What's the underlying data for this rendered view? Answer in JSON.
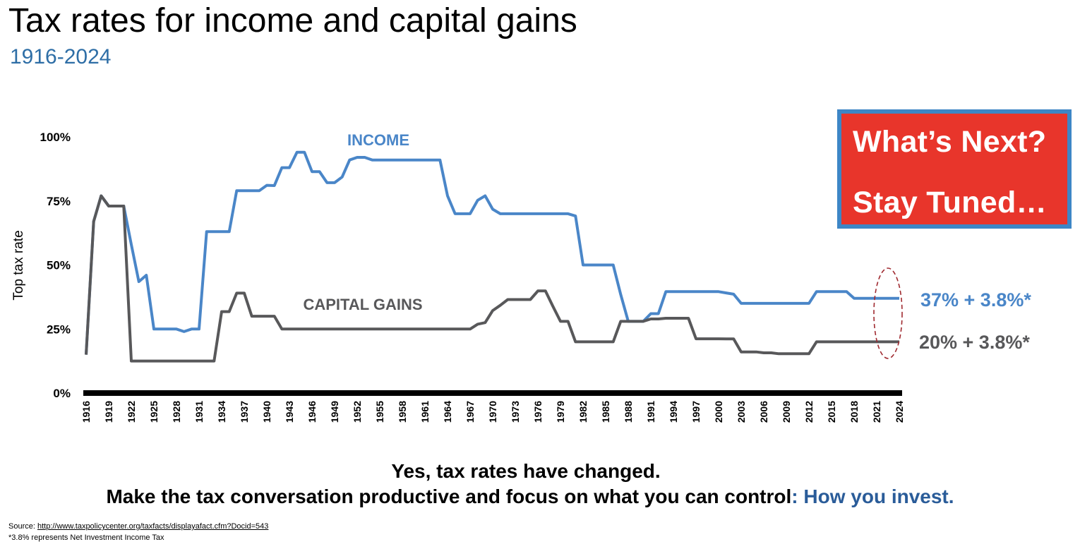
{
  "header": {
    "title": "Tax rates for income and capital gains",
    "subtitle": "1916-2024"
  },
  "callout": {
    "line1": "What’s Next?",
    "line2": "Stay Tuned…",
    "fill_color": "#e8352b",
    "border_color": "#3d86c6"
  },
  "message": {
    "line1": "Yes, tax rates have changed.",
    "line2_main": "Make the tax conversation productive and focus on what you can control",
    "line2_colon": ":",
    "line2_highlight": " How you invest."
  },
  "footnotes": {
    "source_prefix": "Source: ",
    "source_link": "http://www.taxpolicycenter.org/taxfacts/displayafact.cfm?Docid=543",
    "note": "*3.8% represents Net Investment Income Tax"
  },
  "chart_data": {
    "type": "line",
    "title": "",
    "xlabel": "",
    "ylabel": "Top tax rate",
    "xlim": [
      1916,
      2024
    ],
    "ylim": [
      0,
      100
    ],
    "y_ticks": [
      0,
      25,
      50,
      75,
      100
    ],
    "y_tick_labels": [
      "0%",
      "25%",
      "50%",
      "75%",
      "100%"
    ],
    "x_tick_labels": [
      "1916",
      "1919",
      "1922",
      "1925",
      "1928",
      "1931",
      "1934",
      "1937",
      "1940",
      "1943",
      "1946",
      "1949",
      "1952",
      "1955",
      "1958",
      "1961",
      "1964",
      "1967",
      "1970",
      "1973",
      "1976",
      "1979",
      "1982",
      "1985",
      "1988",
      "1991",
      "1994",
      "1997",
      "2000",
      "2003",
      "2006",
      "2009",
      "2012",
      "2015",
      "2018",
      "2021",
      "2024"
    ],
    "grid": false,
    "legend": "none",
    "series": [
      {
        "name": "INCOME",
        "color": "#4a86c8",
        "end_label": "37% + 3.8%*",
        "points": [
          [
            1916,
            15
          ],
          [
            1917,
            67
          ],
          [
            1918,
            77
          ],
          [
            1919,
            73
          ],
          [
            1920,
            73
          ],
          [
            1921,
            73
          ],
          [
            1922,
            58
          ],
          [
            1923,
            43.5
          ],
          [
            1924,
            46
          ],
          [
            1925,
            25
          ],
          [
            1926,
            25
          ],
          [
            1927,
            25
          ],
          [
            1928,
            25
          ],
          [
            1929,
            24
          ],
          [
            1930,
            25
          ],
          [
            1931,
            25
          ],
          [
            1932,
            63
          ],
          [
            1933,
            63
          ],
          [
            1934,
            63
          ],
          [
            1935,
            63
          ],
          [
            1936,
            79
          ],
          [
            1937,
            79
          ],
          [
            1938,
            79
          ],
          [
            1939,
            79
          ],
          [
            1940,
            81.1
          ],
          [
            1941,
            81
          ],
          [
            1942,
            88
          ],
          [
            1943,
            88
          ],
          [
            1944,
            94
          ],
          [
            1945,
            94
          ],
          [
            1946,
            86.45
          ],
          [
            1947,
            86.45
          ],
          [
            1948,
            82.13
          ],
          [
            1949,
            82.13
          ],
          [
            1950,
            84.36
          ],
          [
            1951,
            91
          ],
          [
            1952,
            92
          ],
          [
            1953,
            92
          ],
          [
            1954,
            91
          ],
          [
            1955,
            91
          ],
          [
            1956,
            91
          ],
          [
            1957,
            91
          ],
          [
            1958,
            91
          ],
          [
            1959,
            91
          ],
          [
            1960,
            91
          ],
          [
            1961,
            91
          ],
          [
            1962,
            91
          ],
          [
            1963,
            91
          ],
          [
            1964,
            77
          ],
          [
            1965,
            70
          ],
          [
            1966,
            70
          ],
          [
            1967,
            70
          ],
          [
            1968,
            75.25
          ],
          [
            1969,
            77
          ],
          [
            1970,
            71.75
          ],
          [
            1971,
            70
          ],
          [
            1972,
            70
          ],
          [
            1973,
            70
          ],
          [
            1974,
            70
          ],
          [
            1975,
            70
          ],
          [
            1976,
            70
          ],
          [
            1977,
            70
          ],
          [
            1978,
            70
          ],
          [
            1979,
            70
          ],
          [
            1980,
            70
          ],
          [
            1981,
            69.13
          ],
          [
            1982,
            50
          ],
          [
            1983,
            50
          ],
          [
            1984,
            50
          ],
          [
            1985,
            50
          ],
          [
            1986,
            50
          ],
          [
            1987,
            38.5
          ],
          [
            1988,
            28
          ],
          [
            1989,
            28
          ],
          [
            1990,
            28
          ],
          [
            1991,
            31
          ],
          [
            1992,
            31
          ],
          [
            1993,
            39.6
          ],
          [
            1994,
            39.6
          ],
          [
            1995,
            39.6
          ],
          [
            1996,
            39.6
          ],
          [
            1997,
            39.6
          ],
          [
            1998,
            39.6
          ],
          [
            1999,
            39.6
          ],
          [
            2000,
            39.6
          ],
          [
            2001,
            39.1
          ],
          [
            2002,
            38.6
          ],
          [
            2003,
            35
          ],
          [
            2004,
            35
          ],
          [
            2005,
            35
          ],
          [
            2006,
            35
          ],
          [
            2007,
            35
          ],
          [
            2008,
            35
          ],
          [
            2009,
            35
          ],
          [
            2010,
            35
          ],
          [
            2011,
            35
          ],
          [
            2012,
            35
          ],
          [
            2013,
            39.6
          ],
          [
            2014,
            39.6
          ],
          [
            2015,
            39.6
          ],
          [
            2016,
            39.6
          ],
          [
            2017,
            39.6
          ],
          [
            2018,
            37
          ],
          [
            2019,
            37
          ],
          [
            2020,
            37
          ],
          [
            2021,
            37
          ],
          [
            2022,
            37
          ],
          [
            2023,
            37
          ],
          [
            2024,
            37
          ]
        ]
      },
      {
        "name": "CAPITAL GAINS",
        "color": "#58585a",
        "end_label": "20% + 3.8%*",
        "points": [
          [
            1916,
            15
          ],
          [
            1917,
            67
          ],
          [
            1918,
            77
          ],
          [
            1919,
            73
          ],
          [
            1920,
            73
          ],
          [
            1921,
            73
          ],
          [
            1922,
            12.5
          ],
          [
            1923,
            12.5
          ],
          [
            1924,
            12.5
          ],
          [
            1925,
            12.5
          ],
          [
            1926,
            12.5
          ],
          [
            1927,
            12.5
          ],
          [
            1928,
            12.5
          ],
          [
            1929,
            12.5
          ],
          [
            1930,
            12.5
          ],
          [
            1931,
            12.5
          ],
          [
            1932,
            12.5
          ],
          [
            1933,
            12.5
          ],
          [
            1934,
            31.8
          ],
          [
            1935,
            31.8
          ],
          [
            1936,
            39
          ],
          [
            1937,
            39
          ],
          [
            1938,
            30
          ],
          [
            1939,
            30
          ],
          [
            1940,
            30
          ],
          [
            1941,
            30
          ],
          [
            1942,
            25
          ],
          [
            1943,
            25
          ],
          [
            1944,
            25
          ],
          [
            1945,
            25
          ],
          [
            1946,
            25
          ],
          [
            1947,
            25
          ],
          [
            1948,
            25
          ],
          [
            1949,
            25
          ],
          [
            1950,
            25
          ],
          [
            1951,
            25
          ],
          [
            1952,
            25
          ],
          [
            1953,
            25
          ],
          [
            1954,
            25
          ],
          [
            1955,
            25
          ],
          [
            1956,
            25
          ],
          [
            1957,
            25
          ],
          [
            1958,
            25
          ],
          [
            1959,
            25
          ],
          [
            1960,
            25
          ],
          [
            1961,
            25
          ],
          [
            1962,
            25
          ],
          [
            1963,
            25
          ],
          [
            1964,
            25
          ],
          [
            1965,
            25
          ],
          [
            1966,
            25
          ],
          [
            1967,
            25
          ],
          [
            1968,
            26.9
          ],
          [
            1969,
            27.5
          ],
          [
            1970,
            32.21
          ],
          [
            1971,
            34.25
          ],
          [
            1972,
            36.5
          ],
          [
            1973,
            36.5
          ],
          [
            1974,
            36.5
          ],
          [
            1975,
            36.5
          ],
          [
            1976,
            39.875
          ],
          [
            1977,
            39.875
          ],
          [
            1978,
            33.85
          ],
          [
            1979,
            28
          ],
          [
            1980,
            28
          ],
          [
            1981,
            20
          ],
          [
            1982,
            20
          ],
          [
            1983,
            20
          ],
          [
            1984,
            20
          ],
          [
            1985,
            20
          ],
          [
            1986,
            20
          ],
          [
            1987,
            28
          ],
          [
            1988,
            28
          ],
          [
            1989,
            28
          ],
          [
            1990,
            28
          ],
          [
            1991,
            28.93
          ],
          [
            1992,
            28.93
          ],
          [
            1993,
            29.19
          ],
          [
            1994,
            29.19
          ],
          [
            1995,
            29.19
          ],
          [
            1996,
            29.19
          ],
          [
            1997,
            21.19
          ],
          [
            1998,
            21.19
          ],
          [
            1999,
            21.19
          ],
          [
            2000,
            21.19
          ],
          [
            2001,
            21.17
          ],
          [
            2002,
            21.16
          ],
          [
            2003,
            16.05
          ],
          [
            2004,
            16.05
          ],
          [
            2005,
            16.05
          ],
          [
            2006,
            15.7
          ],
          [
            2007,
            15.7
          ],
          [
            2008,
            15.35
          ],
          [
            2009,
            15.35
          ],
          [
            2010,
            15.35
          ],
          [
            2011,
            15.35
          ],
          [
            2012,
            15.35
          ],
          [
            2013,
            20
          ],
          [
            2014,
            20
          ],
          [
            2015,
            20
          ],
          [
            2016,
            20
          ],
          [
            2017,
            20
          ],
          [
            2018,
            20
          ],
          [
            2019,
            20
          ],
          [
            2020,
            20
          ],
          [
            2021,
            20
          ],
          [
            2022,
            20
          ],
          [
            2023,
            20
          ],
          [
            2024,
            20
          ]
        ]
      }
    ]
  }
}
